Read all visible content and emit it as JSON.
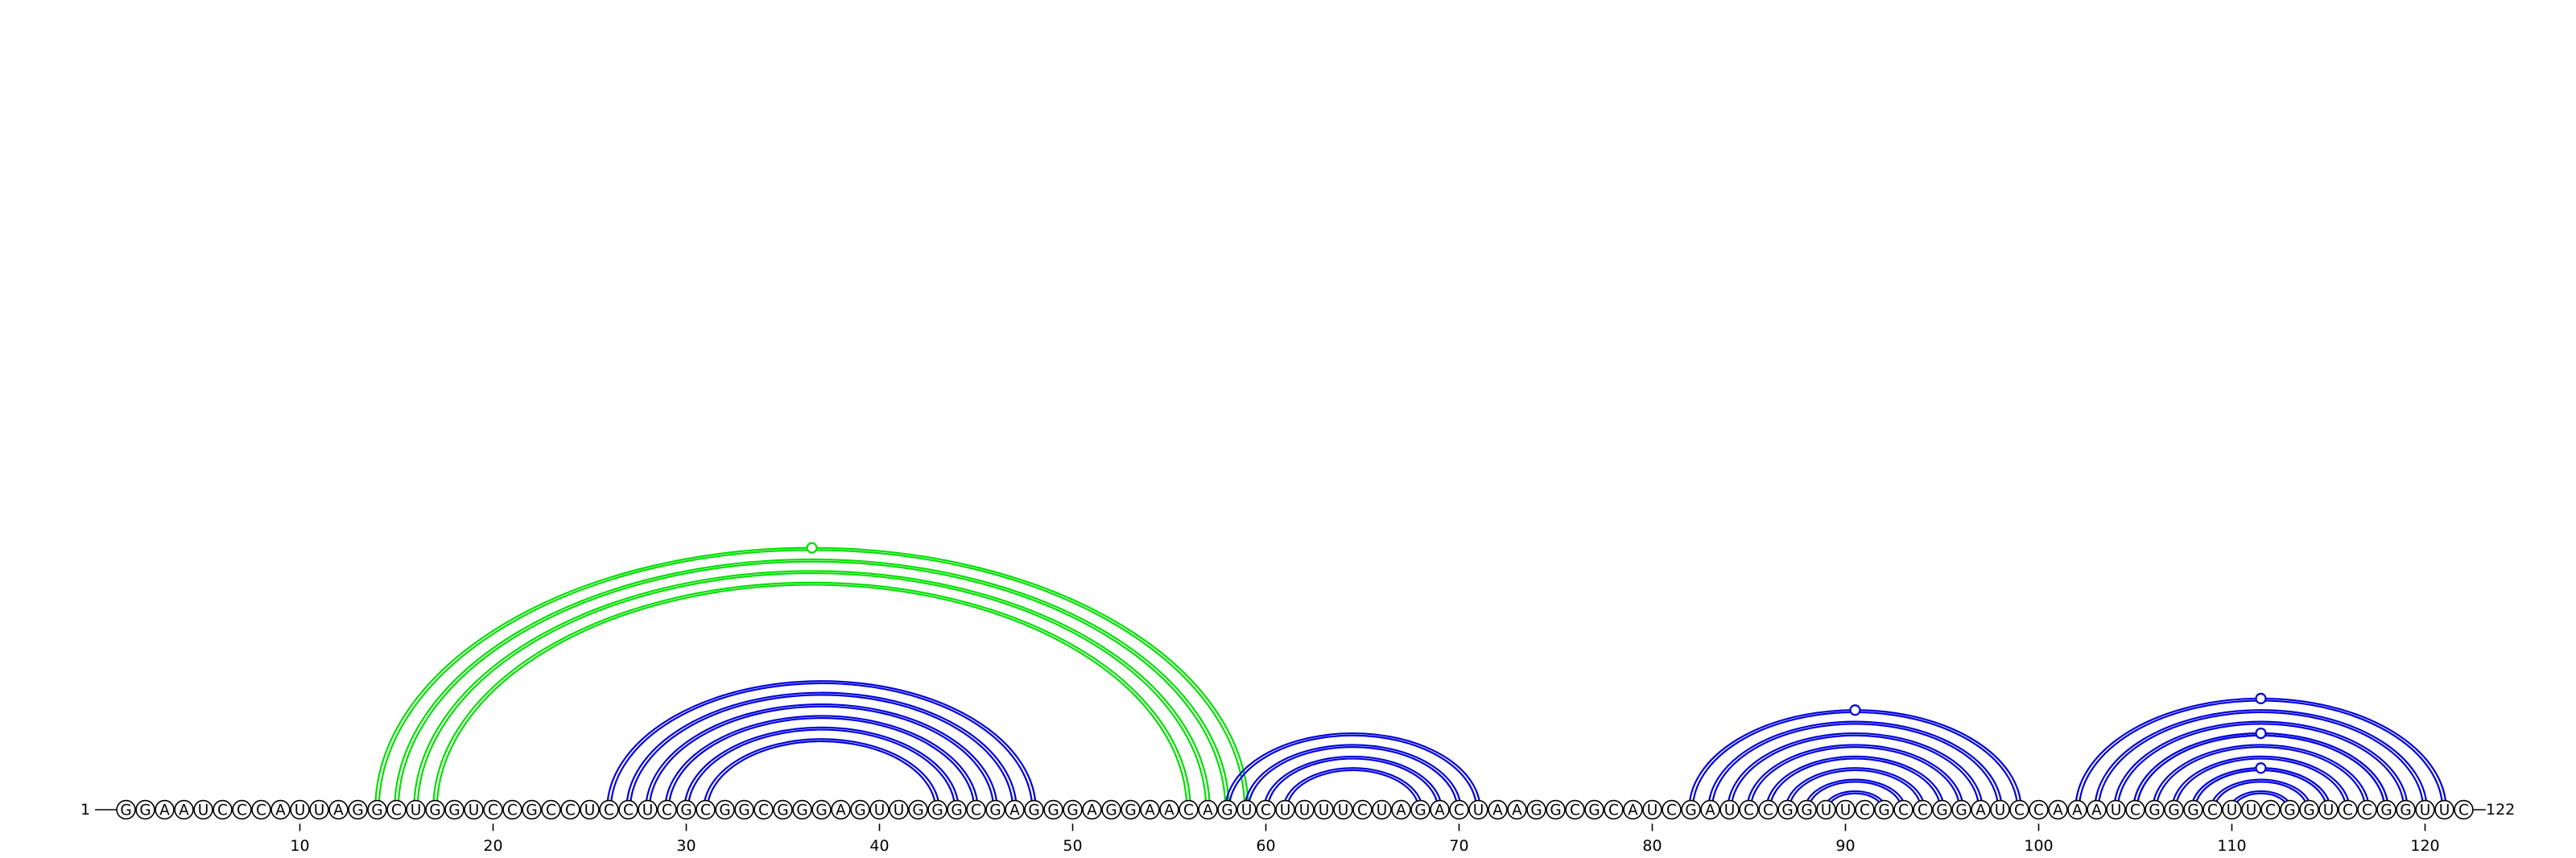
{
  "sequence": "GGAAUCCCAUUAGGCUGGUCCGCCUCCUCGCGGCGGGAGUUGGGCGAGGGAGGAACAGUCUUUUCUAGACUAAGGCGCAUCGAUCCGGUUCGCCGGAUCCAAAUCGGGCUUCGGUCCGGUUC",
  "labels": {
    "start": "1",
    "end": "122"
  },
  "ticks": [
    10,
    20,
    30,
    40,
    50,
    60,
    70,
    80,
    90,
    100,
    110,
    120
  ],
  "colors": {
    "green": "#00e000",
    "blue": "#0000dd",
    "text": "#000000"
  },
  "helices": [
    {
      "color": "green",
      "pairs": [
        [
          14,
          59
        ],
        [
          15,
          58
        ],
        [
          16,
          57
        ],
        [
          17,
          56
        ]
      ],
      "marker": true
    },
    {
      "color": "blue",
      "pairs": [
        [
          26,
          48
        ],
        [
          27,
          47
        ],
        [
          28,
          46
        ],
        [
          29,
          45
        ],
        [
          30,
          44
        ],
        [
          31,
          43
        ]
      ],
      "marker": false
    },
    {
      "color": "blue",
      "pairs": [
        [
          58,
          71
        ],
        [
          59,
          70
        ],
        [
          60,
          69
        ],
        [
          61,
          68
        ]
      ],
      "marker": false
    },
    {
      "color": "blue",
      "pairs": [
        [
          82,
          99
        ],
        [
          83,
          98
        ],
        [
          84,
          97
        ],
        [
          85,
          96
        ],
        [
          86,
          95
        ],
        [
          87,
          94
        ],
        [
          88,
          93
        ],
        [
          89,
          92
        ]
      ],
      "marker": true
    },
    {
      "color": "blue",
      "pairs": [
        [
          102,
          121
        ],
        [
          103,
          120
        ],
        [
          104,
          119
        ],
        [
          105,
          118
        ],
        [
          106,
          117
        ],
        [
          107,
          116
        ],
        [
          108,
          115
        ],
        [
          109,
          114
        ],
        [
          110,
          113
        ]
      ],
      "marker": true
    },
    {
      "color": "blue",
      "pairs": [
        [
          105,
          118
        ]
      ],
      "marker": true
    },
    {
      "color": "blue",
      "pairs": [
        [
          108,
          115
        ]
      ],
      "marker": true
    }
  ]
}
